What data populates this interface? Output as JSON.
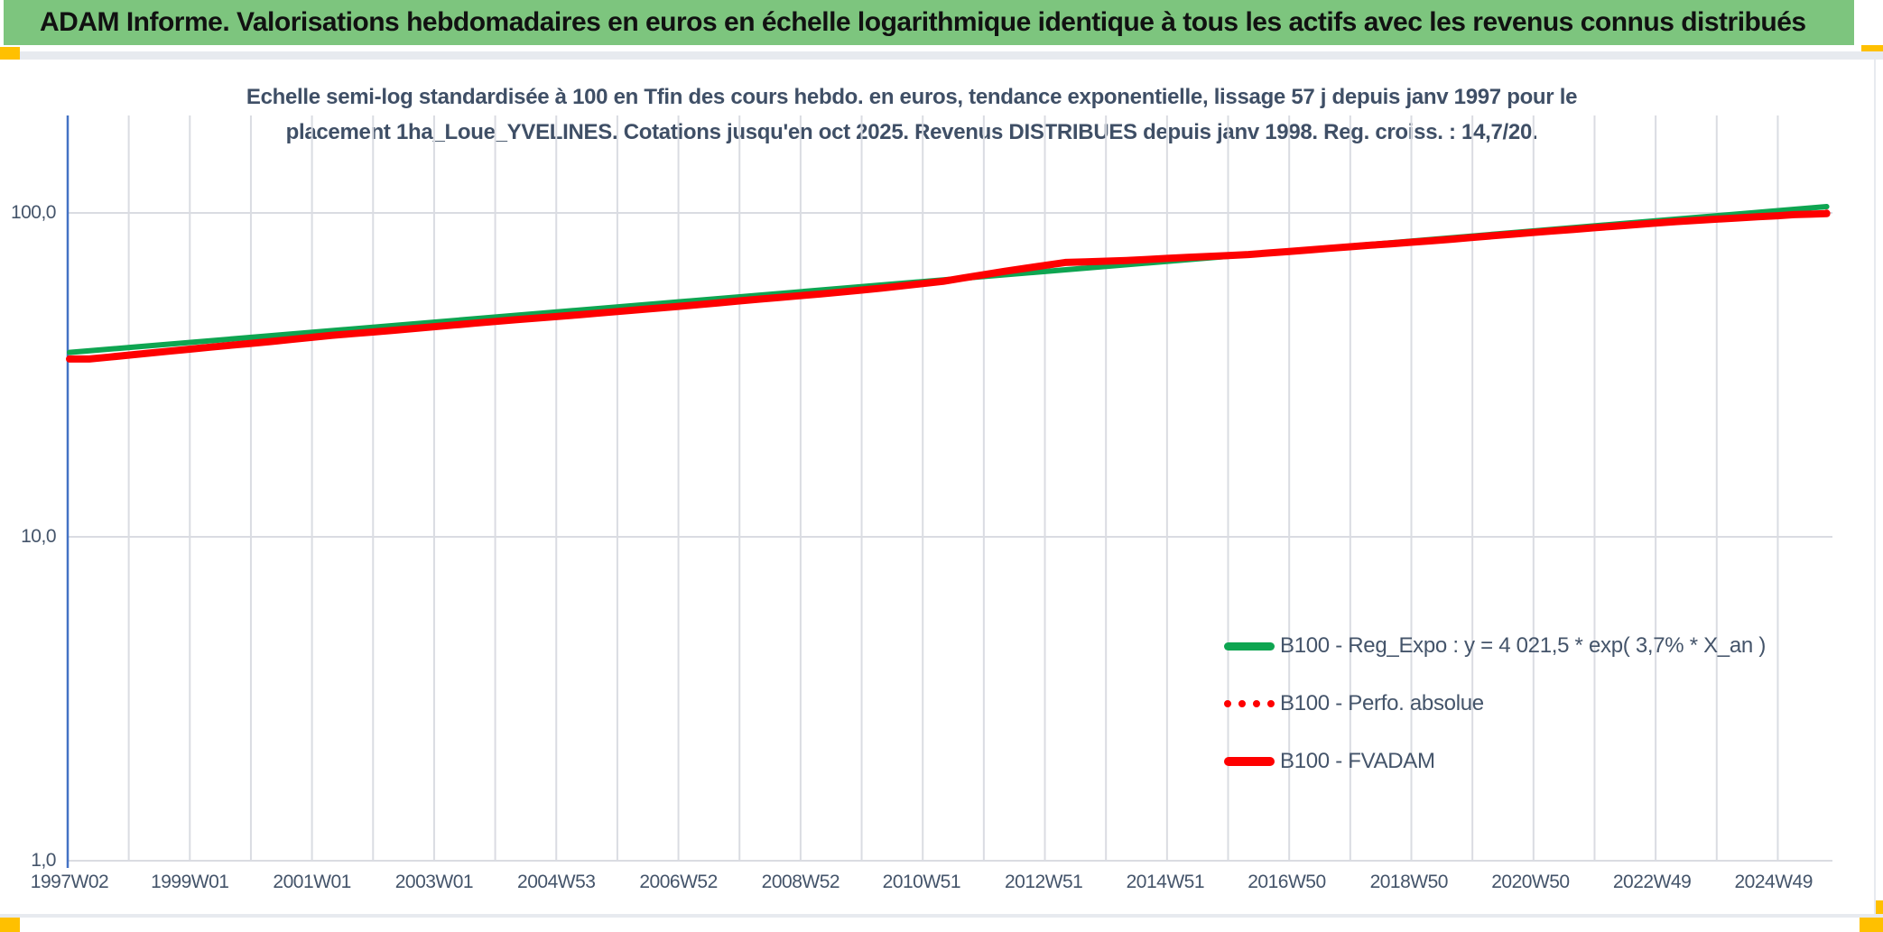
{
  "header": {
    "title": "ADAM Informe. Valorisations hebdomadaires en euros en échelle logarithmique identique à tous les actifs avec les revenus connus distribués",
    "bar_color": "#7dc57e",
    "accent_color": "#ffc000"
  },
  "subtitle": {
    "line1": "Echelle semi-log standardisée à 100 en Tfin des cours hebdo. en euros, tendance exponentielle, lissage 57 j depuis janv 1997 pour le",
    "line2": "placement 1ha_Loue_YVELINES. Cotations jusqu'en oct 2025. Revenus DISTRIBUES depuis janv 1998. Reg. croiss. : 14,7/20."
  },
  "chart_data": {
    "type": "line",
    "y_axis": {
      "scale": "log",
      "range": [
        1,
        200
      ],
      "ticks": [
        {
          "label": "1,0",
          "v": 1
        },
        {
          "label": "10,0",
          "v": 10
        },
        {
          "label": "100,0",
          "v": 100
        }
      ],
      "axis_color": "#4472c4",
      "gridline_color": "#dadce2"
    },
    "x_axis": {
      "range": [
        1997.03,
        2025.97
      ],
      "gridline_years": [
        1998,
        1999,
        2000,
        2001,
        2002,
        2003,
        2004,
        2005,
        2006,
        2007,
        2008,
        2009,
        2010,
        2011,
        2012,
        2013,
        2014,
        2015,
        2016,
        2017,
        2018,
        2019,
        2020,
        2021,
        2022,
        2023,
        2024,
        2025
      ],
      "ticks": [
        {
          "label": "1997W02",
          "t": 1997.03
        },
        {
          "label": "1999W01",
          "t": 1999.0
        },
        {
          "label": "2001W01",
          "t": 2001.0
        },
        {
          "label": "2003W01",
          "t": 2003.0
        },
        {
          "label": "2004W53",
          "t": 2005.0
        },
        {
          "label": "2006W52",
          "t": 2007.0
        },
        {
          "label": "2008W52",
          "t": 2009.0
        },
        {
          "label": "2010W51",
          "t": 2010.98
        },
        {
          "label": "2012W51",
          "t": 2012.98
        },
        {
          "label": "2014W51",
          "t": 2014.97
        },
        {
          "label": "2016W50",
          "t": 2016.96
        },
        {
          "label": "2018W50",
          "t": 2018.96
        },
        {
          "label": "2020W50",
          "t": 2020.95
        },
        {
          "label": "2022W49",
          "t": 2022.94
        },
        {
          "label": "2024W49",
          "t": 2024.93
        }
      ]
    },
    "series": [
      {
        "name": "B100 - Reg_Expo : y = 4 021,5 * exp( 3,7% *  X_an )",
        "color": "#0ea551",
        "style": "solid",
        "width": 6,
        "step": false,
        "points": [
          [
            1997.03,
            37.1
          ],
          [
            2025.8,
            104.6
          ]
        ]
      },
      {
        "name": "B100 - Perfo. absolue",
        "color": "#fe0000",
        "style": "dotted",
        "width": 7,
        "step": true,
        "points": [
          [
            1997.03,
            35.4
          ],
          [
            1998,
            36.9
          ],
          [
            1999,
            38.5
          ],
          [
            2000,
            40.1
          ],
          [
            2001,
            41.9
          ],
          [
            2002,
            43.4
          ],
          [
            2003,
            45.1
          ],
          [
            2004,
            46.8
          ],
          [
            2005,
            48.4
          ],
          [
            2006,
            50.2
          ],
          [
            2007,
            52.1
          ],
          [
            2008,
            54.2
          ],
          [
            2009,
            56.2
          ],
          [
            2010,
            58.6
          ],
          [
            2011,
            61.5
          ],
          [
            2012,
            66.0
          ],
          [
            2013,
            70.3
          ],
          [
            2014,
            71.3
          ],
          [
            2015,
            72.9
          ],
          [
            2016,
            74.4
          ],
          [
            2017,
            76.9
          ],
          [
            2018,
            79.5
          ],
          [
            2019,
            82.0
          ],
          [
            2020,
            85.0
          ],
          [
            2021,
            88.0
          ],
          [
            2022,
            91.0
          ],
          [
            2023,
            94.0
          ],
          [
            2024,
            96.5
          ],
          [
            2025,
            98.8
          ],
          [
            2025.8,
            99.8
          ]
        ]
      },
      {
        "name": "B100 - FVADAM",
        "color": "#fe0000",
        "style": "solid",
        "width": 8,
        "step": true,
        "points": [
          [
            1997.03,
            35.4
          ],
          [
            1998,
            36.9
          ],
          [
            1999,
            38.5
          ],
          [
            2000,
            40.1
          ],
          [
            2001,
            41.9
          ],
          [
            2002,
            43.4
          ],
          [
            2003,
            45.1
          ],
          [
            2004,
            46.8
          ],
          [
            2005,
            48.4
          ],
          [
            2006,
            50.2
          ],
          [
            2007,
            52.1
          ],
          [
            2008,
            54.2
          ],
          [
            2009,
            56.2
          ],
          [
            2010,
            58.6
          ],
          [
            2011,
            61.5
          ],
          [
            2012,
            66.0
          ],
          [
            2013,
            70.3
          ],
          [
            2014,
            71.3
          ],
          [
            2015,
            72.9
          ],
          [
            2016,
            74.4
          ],
          [
            2017,
            76.9
          ],
          [
            2018,
            79.5
          ],
          [
            2019,
            82.0
          ],
          [
            2020,
            85.0
          ],
          [
            2021,
            88.0
          ],
          [
            2022,
            91.0
          ],
          [
            2023,
            94.0
          ],
          [
            2024,
            96.5
          ],
          [
            2025,
            98.8
          ],
          [
            2025.8,
            99.8
          ]
        ]
      }
    ],
    "legend_position": "inside-bottom-right"
  }
}
